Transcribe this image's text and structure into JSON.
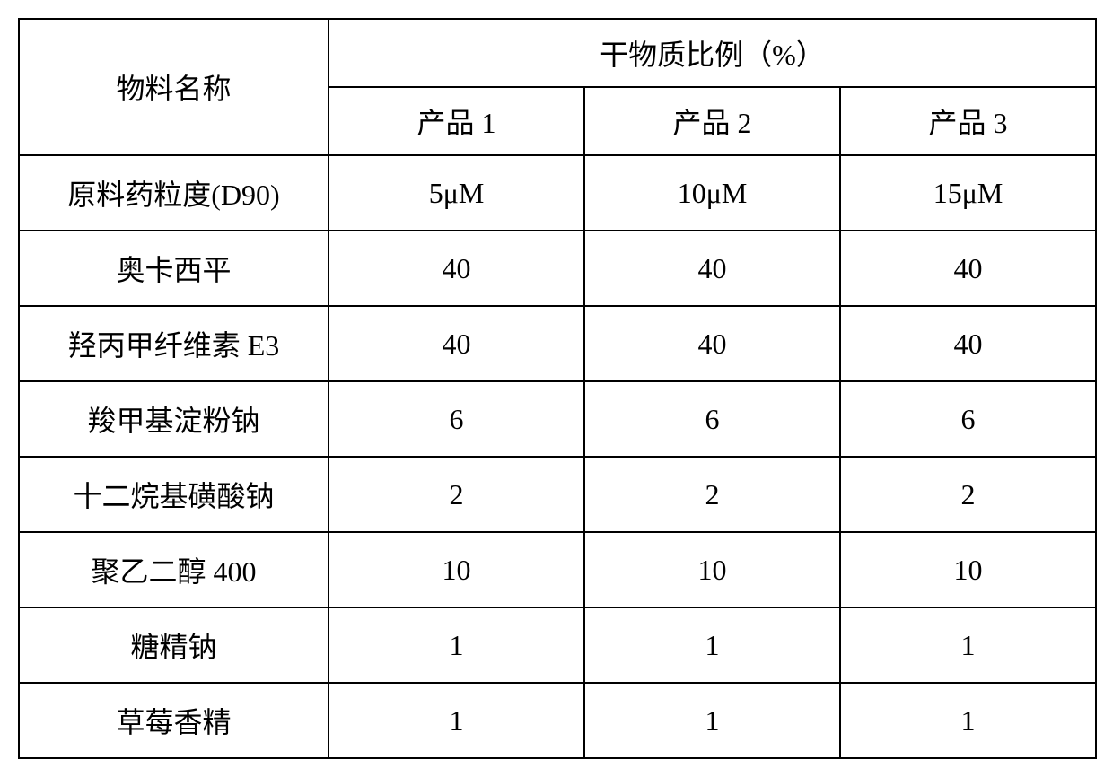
{
  "table": {
    "type": "table",
    "border_color": "#000000",
    "background_color": "#ffffff",
    "text_color": "#000000",
    "font_size": 32,
    "border_width": 2,
    "header": {
      "col1_label": "物料名称",
      "col2_span_label": "干物质比例（%）",
      "sub_headers": [
        "产品 1",
        "产品 2",
        "产品 3"
      ]
    },
    "rows": [
      {
        "name": "原料药粒度(D90)",
        "p1": "5μM",
        "p2": "10μM",
        "p3": "15μM"
      },
      {
        "name": "奥卡西平",
        "p1": "40",
        "p2": "40",
        "p3": "40"
      },
      {
        "name": "羟丙甲纤维素 E3",
        "p1": "40",
        "p2": "40",
        "p3": "40"
      },
      {
        "name": "羧甲基淀粉钠",
        "p1": "6",
        "p2": "6",
        "p3": "6"
      },
      {
        "name": "十二烷基磺酸钠",
        "p1": "2",
        "p2": "2",
        "p3": "2"
      },
      {
        "name": "聚乙二醇 400",
        "p1": "10",
        "p2": "10",
        "p3": "10"
      },
      {
        "name": "糖精钠",
        "p1": "1",
        "p2": "1",
        "p3": "1"
      },
      {
        "name": "草莓香精",
        "p1": "1",
        "p2": "1",
        "p3": "1"
      }
    ],
    "column_widths": {
      "name": 345,
      "product": 285
    }
  }
}
